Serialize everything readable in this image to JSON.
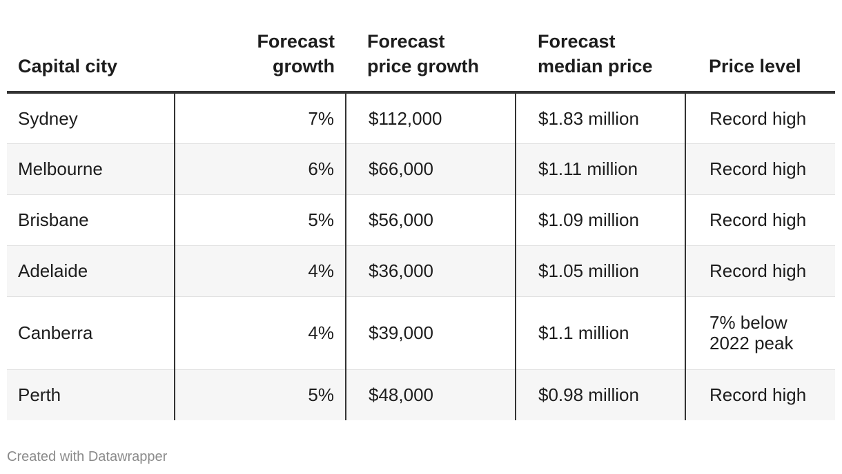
{
  "chart_data": {
    "type": "table",
    "columns": [
      {
        "line1": "",
        "line2": "Capital city"
      },
      {
        "line1": "Forecast",
        "line2": "growth"
      },
      {
        "line1": "Forecast",
        "line2": "price growth"
      },
      {
        "line1": "Forecast",
        "line2": "median price"
      },
      {
        "line1": "",
        "line2": "Price level"
      }
    ],
    "rows": [
      {
        "city": "Sydney",
        "growth": "7%",
        "price_growth": "$112,000",
        "median_price": "$1.83 million",
        "price_level": [
          "Record high"
        ]
      },
      {
        "city": "Melbourne",
        "growth": "6%",
        "price_growth": "$66,000",
        "median_price": "$1.11 million",
        "price_level": [
          "Record high"
        ]
      },
      {
        "city": "Brisbane",
        "growth": "5%",
        "price_growth": "$56,000",
        "median_price": "$1.09 million",
        "price_level": [
          "Record high"
        ]
      },
      {
        "city": "Adelaide",
        "growth": "4%",
        "price_growth": "$36,000",
        "median_price": "$1.05 million",
        "price_level": [
          "Record high"
        ]
      },
      {
        "city": "Canberra",
        "growth": "4%",
        "price_growth": "$39,000",
        "median_price": "$1.1 million",
        "price_level": [
          "7% below",
          "2022 peak"
        ]
      },
      {
        "city": "Perth",
        "growth": "5%",
        "price_growth": "$48,000",
        "median_price": "$0.98 million",
        "price_level": [
          "Record high"
        ]
      }
    ]
  },
  "credit": "Created with Datawrapper",
  "colors": {
    "text": "#1d1d1d",
    "header_rule": "#333333",
    "stripe": "#f6f6f6",
    "credit": "#8a8a8a"
  }
}
